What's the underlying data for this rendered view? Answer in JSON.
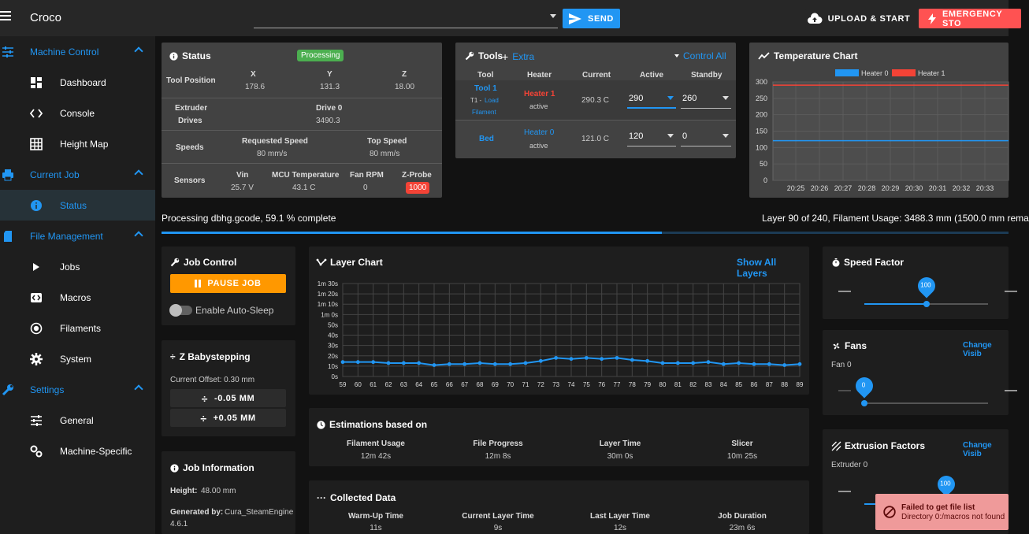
{
  "app": {
    "title": "Croco"
  },
  "topbar": {
    "send": "SEND",
    "upload": "UPLOAD & START",
    "emergency": "EMERGENCY STO"
  },
  "sidebar": {
    "groups": [
      {
        "label": "Machine Control"
      },
      {
        "label": "Current Job"
      },
      {
        "label": "File Management"
      },
      {
        "label": "Settings"
      }
    ],
    "items": [
      {
        "label": "Dashboard"
      },
      {
        "label": "Console"
      },
      {
        "label": "Height Map"
      },
      {
        "label": "Status"
      },
      {
        "label": "Jobs"
      },
      {
        "label": "Macros"
      },
      {
        "label": "Filaments"
      },
      {
        "label": "System"
      },
      {
        "label": "General"
      },
      {
        "label": "Machine-Specific"
      }
    ]
  },
  "status": {
    "title": "Status",
    "state": "Processing",
    "tool_position": "Tool Position",
    "x": "X",
    "y": "Y",
    "z": "Z",
    "x_val": "178.6",
    "y_val": "131.3",
    "z_val": "18.00",
    "extruder": "Extruder",
    "drives": "Drives",
    "drive0": "Drive 0",
    "drive0_val": "3490.3",
    "speeds": "Speeds",
    "req_speed": "Requested Speed",
    "req_speed_val": "80 mm/s",
    "top_speed": "Top Speed",
    "top_speed_val": "80 mm/s",
    "sensors": "Sensors",
    "vin": "Vin",
    "vin_val": "25.7 V",
    "mcu": "MCU Temperature",
    "mcu_val": "43.1 C",
    "fan": "Fan RPM",
    "fan_val": "0",
    "zprobe": "Z-Probe",
    "zprobe_val": "1000"
  },
  "tools": {
    "title": "Tools",
    "extra": "Extra",
    "control_all": "Control All",
    "headers": [
      "Tool",
      "Heater",
      "Current",
      "Active",
      "Standby"
    ],
    "rows": [
      {
        "tool": "Tool 1",
        "sub": "T1 -",
        "load": "Load",
        "filament": "Filament",
        "heater": "Heater 1",
        "state": "active",
        "current": "290.3 C",
        "active": "290",
        "standby": "260"
      },
      {
        "tool": "Bed",
        "heater": "Heater 0",
        "state": "active",
        "current": "121.0 C",
        "active": "120",
        "standby": "0"
      }
    ]
  },
  "temp_chart": {
    "title": "Temperature Chart",
    "legend": [
      {
        "name": "Heater 0",
        "color": "#2196f3"
      },
      {
        "name": "Heater 1",
        "color": "#f44336"
      }
    ],
    "yticks": [
      "300",
      "250",
      "200",
      "150",
      "100",
      "50",
      "0"
    ],
    "xticks": [
      "20:25",
      "20:26",
      "20:27",
      "20:28",
      "20:29",
      "20:30",
      "20:31",
      "20:32",
      "20:33"
    ]
  },
  "progress": {
    "text": "Processing dbhg.gcode, 59.1 % complete",
    "right": "Layer 90 of 240, Filament Usage: 3488.3 mm (1500.0 mm rema",
    "fraction": 0.591
  },
  "job_control": {
    "title": "Job Control",
    "pause": "PAUSE JOB",
    "autosleep": "Enable Auto-Sleep"
  },
  "babystep": {
    "title": "Z Babystepping",
    "offset": "Current Offset: 0.30 mm",
    "minus": "-0.05 MM",
    "plus": "+0.05 MM"
  },
  "job_info": {
    "title": "Job Information",
    "height_lbl": "Height:",
    "height_val": "48.00 mm",
    "gen_lbl": "Generated by:",
    "gen_val": "Cura_SteamEngine",
    "gen_ver": "4.6.1"
  },
  "layer_chart": {
    "title": "Layer Chart",
    "show_all": "Show All Layers"
  },
  "chart_data": {
    "type": "line",
    "x": [
      59,
      60,
      61,
      62,
      63,
      64,
      65,
      66,
      67,
      68,
      69,
      70,
      71,
      72,
      73,
      74,
      75,
      76,
      77,
      78,
      79,
      80,
      81,
      82,
      83,
      84,
      85,
      86,
      87,
      88,
      89
    ],
    "series": [
      {
        "values": [
          14,
          14,
          14,
          13,
          13,
          13,
          11,
          12,
          12,
          13,
          12,
          12,
          13,
          15,
          18,
          17,
          18,
          17,
          18,
          16,
          15,
          13,
          13,
          13,
          14,
          12,
          13,
          12,
          12,
          11,
          12
        ]
      }
    ],
    "yticks": [
      "1m 30s",
      "1m 20s",
      "1m 10s",
      "1m 0s",
      "50s",
      "40s",
      "30s",
      "20s",
      "10s",
      "0s"
    ],
    "ylim": [
      0,
      90
    ]
  },
  "estimations": {
    "title": "Estimations based on",
    "items": [
      {
        "label": "Filament Usage",
        "value": "12m 42s"
      },
      {
        "label": "File Progress",
        "value": "12m 8s"
      },
      {
        "label": "Layer Time",
        "value": "30m 0s"
      },
      {
        "label": "Slicer",
        "value": "10m 25s"
      }
    ]
  },
  "collected": {
    "title": "Collected Data",
    "items": [
      {
        "label": "Warm-Up Time",
        "value": "11s"
      },
      {
        "label": "Current Layer Time",
        "value": "9s"
      },
      {
        "label": "Last Layer Time",
        "value": "12s"
      },
      {
        "label": "Job Duration",
        "value": "23m 6s"
      }
    ]
  },
  "speed_factor": {
    "title": "Speed Factor",
    "value": "100",
    "level": 0.5
  },
  "fans": {
    "title": "Fans",
    "change": "Change Visib",
    "fan0": "Fan 0",
    "value": "0",
    "level": 0
  },
  "extrusion": {
    "title": "Extrusion Factors",
    "change": "Change Visib",
    "extruder0": "Extruder 0",
    "value": "100"
  },
  "toast": {
    "title": "Failed to get file list",
    "message": "Directory 0:/macros not found"
  }
}
